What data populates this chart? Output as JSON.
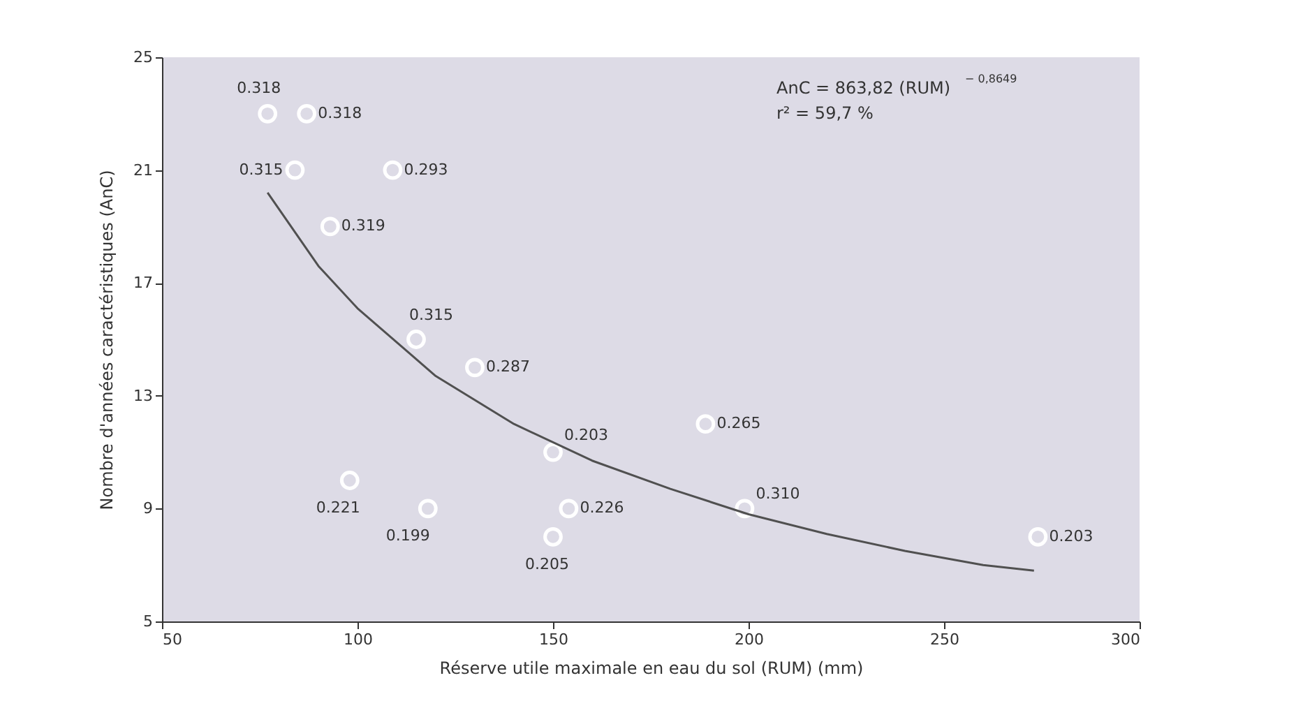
{
  "chart_data": {
    "type": "scatter",
    "xlabel": "Réserve utile maximale en eau du sol (RUM) (mm)",
    "ylabel": "Nombre d'années caractéristiques (AnC)",
    "xlim": [
      50,
      300
    ],
    "xticks": [
      50,
      100,
      150,
      200,
      250,
      300
    ],
    "ylim": [
      5,
      25
    ],
    "yticks": [
      5,
      9,
      13,
      17,
      21,
      25
    ],
    "grid": false,
    "annotations": [
      "AnC  = 863,82 (RUM)$^{− 0,8649}$",
      "r² = 59,7 %",
      {
        "text": "0.318",
        "x": 77,
        "y": 23
      },
      {
        "text": "0.318",
        "x": 87,
        "y": 23
      },
      {
        "text": "0.315",
        "x": 84,
        "y": 21
      },
      {
        "text": "0.293",
        "x": 109,
        "y": 21
      },
      {
        "text": "0.319",
        "x": 93,
        "y": 19
      },
      {
        "text": "0.315",
        "x": 115,
        "y": 15
      },
      {
        "text": "0.287",
        "x": 130,
        "y": 14
      },
      {
        "text": "0.203",
        "x": 150,
        "y": 11
      },
      {
        "text": "0.221",
        "x": 98,
        "y": 10
      },
      {
        "text": "0.199",
        "x": 118,
        "y": 9
      },
      {
        "text": "0.226",
        "x": 154,
        "y": 9
      },
      {
        "text": "0.205",
        "x": 150,
        "y": 8
      },
      {
        "text": "0.265",
        "x": 189,
        "y": 12
      },
      {
        "text": "0.310",
        "x": 199,
        "y": 9
      },
      {
        "text": "0.203",
        "x": 274,
        "y": 8
      }
    ],
    "series": [
      {
        "color": "#ffffff",
        "marker": "circle",
        "x": [
          77,
          87,
          84,
          109,
          93,
          115,
          130,
          150,
          98,
          118,
          154,
          150,
          189,
          199,
          274
        ],
        "values": [
          23,
          23,
          21,
          21,
          19,
          15,
          14,
          11,
          10,
          9,
          9,
          8,
          12,
          9,
          8
        ]
      },
      {
        "type": "line",
        "color": "#505050",
        "line_style": "solid",
        "x": [
          77,
          90,
          100,
          120,
          140,
          160,
          180,
          200,
          220,
          240,
          260,
          273
        ],
        "values": [
          20.2,
          17.6,
          16.1,
          13.7,
          12.0,
          10.7,
          9.7,
          8.8,
          8.1,
          7.5,
          7.0,
          6.8
        ]
      }
    ]
  }
}
